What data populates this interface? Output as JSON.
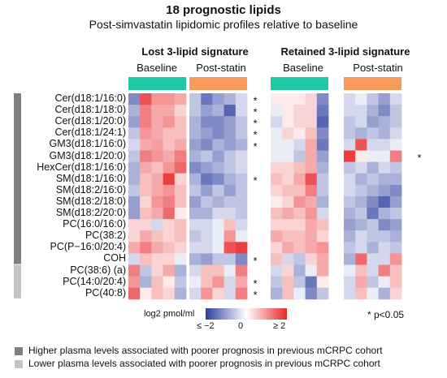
{
  "title": "18 prognostic lipids",
  "subtitle": "Post-simvastatin lipidomic profiles relative to baseline",
  "groups": [
    {
      "title": "Lost 3-lipid signature",
      "color": "#2bb3c0",
      "subgroups": [
        "Baseline",
        "Post-statin"
      ]
    },
    {
      "title": "Retained 3-lipid signature",
      "color": "#ee2a2a",
      "subgroups": [
        "Baseline",
        "Post-statin"
      ]
    }
  ],
  "subgroup_colors": {
    "Baseline": "#1ec9a4",
    "Post-statin": "#f79a5c"
  },
  "colorbar": {
    "title": "log2 pmol/ml",
    "min_label": "≤ −2",
    "mid_label": "0",
    "max_label": "≥ 2",
    "colors": [
      "#2c3ea0",
      "#ffffff",
      "#e8282b"
    ]
  },
  "significance_note": "* p<0.05",
  "category_legend": [
    {
      "label": "Higher plasma levels associated with poorer prognosis in previous mCRPC cohort",
      "color": "#808080"
    },
    {
      "label": "Lower plasma levels associated with poorer prognosis in previous mCRPC cohort",
      "color": "#c4c4c4"
    }
  ],
  "chart_data": {
    "type": "heatmap",
    "value_units": "log2 pmol/ml",
    "color_range": [
      -2,
      2
    ],
    "rows": [
      "Cer(d18:1/16:0)",
      "Cer(d18:1/18:0)",
      "Cer(d18:1/20:0)",
      "Cer(d18:1/24:1)",
      "GM3(d18:1/16:0)",
      "GM3(d18:1/20:0)",
      "HexCer(d18:1/16:0)",
      "SM(d18:1/16:0)",
      "SM(d18:2/16:0)",
      "SM(d18:2/18:0)",
      "SM(d18:2/20:0)",
      "PC(16:0/16:0)",
      "PC(38:2)",
      "PC(P−16:0/20:4)",
      "COH",
      "PC(38:6) (a)",
      "PC(14:0/20:4)",
      "PC(40:8)"
    ],
    "row_category": [
      "higher",
      "higher",
      "higher",
      "higher",
      "higher",
      "higher",
      "higher",
      "higher",
      "higher",
      "higher",
      "higher",
      "higher",
      "higher",
      "higher",
      "higher",
      "lower",
      "lower",
      "lower"
    ],
    "panels": [
      {
        "group": "Lost 3-lipid signature",
        "subgroup": "Baseline",
        "values": [
          [
            -1.2,
            1.6,
            1.0,
            1.0,
            0.8
          ],
          [
            -0.8,
            1.2,
            0.8,
            0.8,
            0.4
          ],
          [
            -1.0,
            1.2,
            0.8,
            1.0,
            0.6
          ],
          [
            -0.6,
            1.0,
            0.8,
            0.6,
            0.6
          ],
          [
            -0.4,
            0.8,
            0.9,
            0.6,
            0.8
          ],
          [
            -0.6,
            1.2,
            1.0,
            0.8,
            1.2
          ],
          [
            -0.8,
            0.8,
            0.6,
            1.0,
            1.4
          ],
          [
            -0.8,
            0.6,
            0.8,
            1.8,
            0.4
          ],
          [
            -0.6,
            0.6,
            0.8,
            1.0,
            0.6
          ],
          [
            -1.0,
            0.4,
            1.0,
            1.2,
            0.6
          ],
          [
            -1.0,
            0.6,
            0.8,
            1.4,
            0.2
          ],
          [
            0.4,
            0.4,
            -0.4,
            0.4,
            0.6
          ],
          [
            0.4,
            0.8,
            0.6,
            0.4,
            0.6
          ],
          [
            0.8,
            1.2,
            0.8,
            0.6,
            0.4
          ],
          [
            -0.4,
            0.6,
            0.4,
            0.4,
            -0.2
          ],
          [
            1.2,
            -0.6,
            0.4,
            0.8,
            -0.8
          ],
          [
            1.0,
            -0.8,
            0.6,
            0.2,
            -0.6
          ],
          [
            1.4,
            0.2,
            0.6,
            0.4,
            -0.8
          ]
        ]
      },
      {
        "group": "Lost 3-lipid signature",
        "subgroup": "Post-statin",
        "values": [
          [
            -0.6,
            -1.4,
            -1.0,
            -0.8,
            -0.4
          ],
          [
            -0.6,
            -1.0,
            -0.8,
            -1.6,
            -0.4
          ],
          [
            -0.8,
            -1.2,
            -1.2,
            -1.0,
            -0.6
          ],
          [
            -0.8,
            -1.0,
            -1.2,
            -1.0,
            -0.6
          ],
          [
            -1.0,
            -1.2,
            -0.8,
            -1.0,
            -0.8
          ],
          [
            -0.8,
            -0.6,
            -1.0,
            -0.6,
            -0.4
          ],
          [
            -1.2,
            -1.0,
            -0.8,
            -0.6,
            -0.4
          ],
          [
            -0.8,
            -1.4,
            -1.2,
            -0.8,
            -0.6
          ],
          [
            -0.6,
            -1.0,
            -0.6,
            -1.0,
            -0.6
          ],
          [
            -1.0,
            -0.6,
            -0.8,
            -0.6,
            -0.6
          ],
          [
            -0.8,
            -0.8,
            -0.4,
            -0.4,
            -0.6
          ],
          [
            -0.4,
            -0.4,
            -0.2,
            0.6,
            -0.4
          ],
          [
            -0.6,
            -0.4,
            -0.2,
            1.0,
            -0.2
          ],
          [
            -0.4,
            -0.4,
            -0.2,
            1.6,
            1.8
          ],
          [
            -0.8,
            -1.0,
            -0.6,
            -0.6,
            -1.2
          ],
          [
            -0.4,
            0.6,
            0.6,
            -0.2,
            1.2
          ],
          [
            -0.2,
            0.6,
            1.0,
            -0.4,
            0.8
          ],
          [
            -0.4,
            1.0,
            0.4,
            -0.4,
            1.2
          ]
        ]
      },
      {
        "group": "Retained 3-lipid signature",
        "subgroup": "Baseline",
        "values": [
          [
            0.2,
            0.2,
            0.2,
            0.4,
            -1.2
          ],
          [
            -0.2,
            0.2,
            0.4,
            0.4,
            -1.4
          ],
          [
            -0.4,
            0.2,
            0.4,
            0.4,
            -1.6
          ],
          [
            -0.2,
            0.4,
            0.2,
            0.6,
            -1.2
          ],
          [
            -0.2,
            -0.2,
            -0.4,
            0.8,
            -1.4
          ],
          [
            -0.2,
            -0.2,
            -0.6,
            0.8,
            -1.0
          ],
          [
            0.4,
            0.4,
            0.6,
            0.8,
            -0.8
          ],
          [
            0.6,
            0.4,
            0.8,
            1.6,
            -0.6
          ],
          [
            0.4,
            0.6,
            0.6,
            1.2,
            -0.6
          ],
          [
            0.2,
            0.4,
            1.0,
            0.8,
            -0.8
          ],
          [
            0.6,
            0.8,
            0.6,
            1.0,
            -0.4
          ],
          [
            0.4,
            0.4,
            0.4,
            0.8,
            0.6
          ],
          [
            0.8,
            0.6,
            0.6,
            0.8,
            0.4
          ],
          [
            0.4,
            0.8,
            0.6,
            0.8,
            1.0
          ],
          [
            0.6,
            -0.4,
            -0.6,
            0.4,
            0.8
          ],
          [
            -0.4,
            0.4,
            -0.8,
            -0.2,
            0.8
          ],
          [
            -0.6,
            0.6,
            -0.6,
            -1.4,
            0.2
          ],
          [
            -0.8,
            0.6,
            -0.2,
            -1.2,
            -0.6
          ]
        ]
      },
      {
        "group": "Retained 3-lipid signature",
        "subgroup": "Post-statin",
        "values": [
          [
            -0.4,
            -0.2,
            -0.6,
            -1.0,
            -0.4
          ],
          [
            -0.4,
            -0.4,
            -0.8,
            -1.2,
            -0.6
          ],
          [
            -0.6,
            -0.4,
            -1.0,
            -0.8,
            -0.6
          ],
          [
            -0.6,
            -0.8,
            -0.6,
            -0.8,
            -0.4
          ],
          [
            -0.4,
            1.6,
            -0.4,
            -0.4,
            -0.2
          ],
          [
            1.8,
            0.2,
            -0.2,
            -0.2,
            1.2
          ],
          [
            -0.6,
            -0.4,
            -0.8,
            -0.4,
            -0.6
          ],
          [
            -0.4,
            -0.8,
            -0.6,
            -0.8,
            -0.8
          ],
          [
            -0.4,
            -0.6,
            -0.8,
            -1.0,
            -1.2
          ],
          [
            -0.6,
            -0.8,
            -1.2,
            -1.6,
            -1.0
          ],
          [
            -0.8,
            -0.6,
            -1.4,
            -0.8,
            -0.6
          ],
          [
            -1.0,
            -0.8,
            -0.6,
            -1.2,
            -1.0
          ],
          [
            -0.8,
            -0.4,
            -0.6,
            -0.6,
            -0.8
          ],
          [
            -0.6,
            -0.4,
            -0.8,
            -0.4,
            -0.6
          ],
          [
            -0.8,
            1.4,
            -0.4,
            -0.4,
            1.0
          ],
          [
            -0.2,
            0.6,
            -0.4,
            1.2,
            0.6
          ],
          [
            -0.4,
            0.8,
            -0.6,
            -0.2,
            0.6
          ],
          [
            -0.4,
            0.6,
            -0.2,
            -0.8,
            0.4
          ]
        ]
      }
    ],
    "significance": [
      {
        "group": "Lost 3-lipid signature",
        "rows": [
          "Cer(d18:1/16:0)",
          "Cer(d18:1/18:0)",
          "Cer(d18:1/20:0)",
          "Cer(d18:1/24:1)",
          "GM3(d18:1/16:0)",
          "SM(d18:1/16:0)",
          "COH",
          "PC(14:0/20:4)",
          "PC(40:8)"
        ]
      },
      {
        "group": "Retained 3-lipid signature",
        "rows": [
          "GM3(d18:1/20:0)"
        ]
      }
    ],
    "significance_mark": "*"
  }
}
